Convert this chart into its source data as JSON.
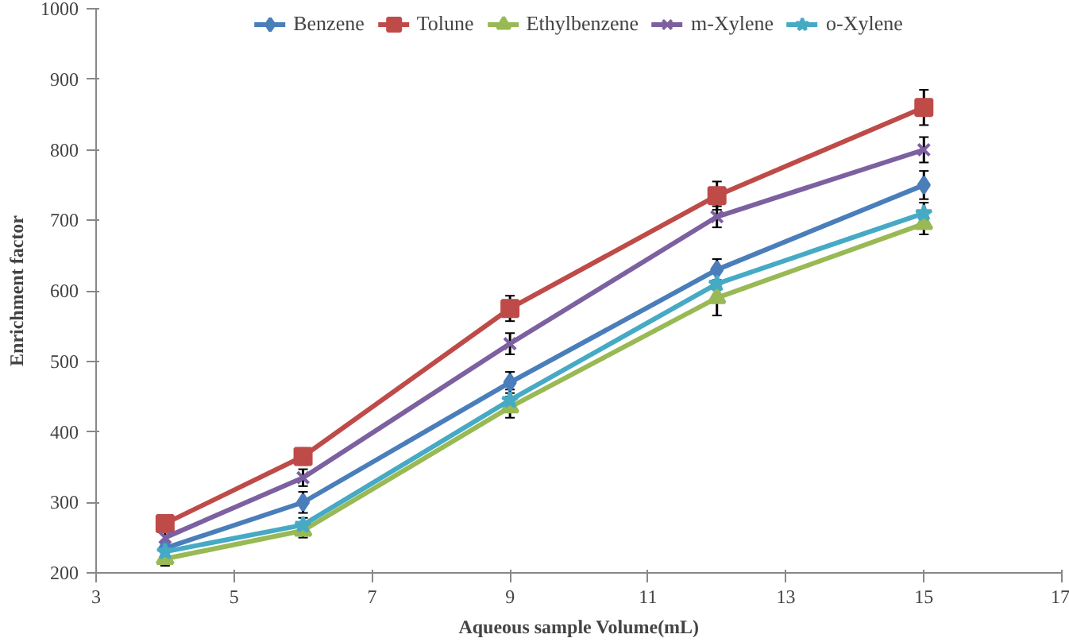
{
  "chart_data": {
    "type": "line",
    "xlabel": "Aqueous sample Volume(mL)",
    "ylabel": "Enrichment factor",
    "x": [
      4,
      6,
      9,
      12,
      15
    ],
    "xlim": [
      3,
      17
    ],
    "xticks": [
      3,
      5,
      7,
      9,
      11,
      13,
      15,
      17
    ],
    "ylim": [
      200,
      1000
    ],
    "yticks": [
      200,
      300,
      400,
      500,
      600,
      700,
      800,
      900,
      1000
    ],
    "grid": false,
    "legend": "top",
    "series": [
      {
        "name": "Benzene",
        "color": "#4a7ebb",
        "marker": "diamond",
        "values": [
          235,
          300,
          470,
          630,
          750
        ],
        "errors": [
          null,
          15,
          15,
          15,
          20
        ]
      },
      {
        "name": "Tolune",
        "color": "#be4b48",
        "marker": "square",
        "values": [
          270,
          365,
          575,
          735,
          860
        ],
        "errors": [
          10,
          12,
          18,
          20,
          25
        ]
      },
      {
        "name": "Ethylbenzene",
        "color": "#98b954",
        "marker": "triangle",
        "values": [
          220,
          260,
          435,
          590,
          695
        ],
        "errors": [
          10,
          10,
          15,
          25,
          15
        ]
      },
      {
        "name": "m-Xylene",
        "color": "#7d60a0",
        "marker": "cross",
        "values": [
          250,
          335,
          525,
          705,
          800
        ],
        "errors": [
          10,
          12,
          15,
          15,
          18
        ]
      },
      {
        "name": "o-Xylene",
        "color": "#46aac5",
        "marker": "star",
        "values": [
          230,
          268,
          445,
          610,
          710
        ],
        "errors": [
          null,
          10,
          15,
          null,
          15
        ]
      }
    ]
  }
}
